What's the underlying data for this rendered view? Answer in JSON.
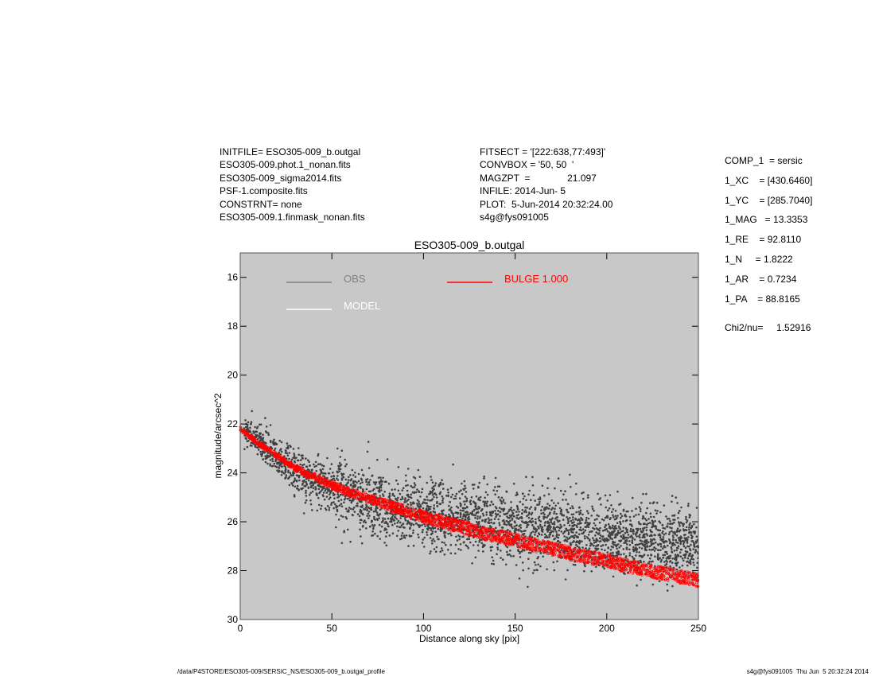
{
  "header": {
    "left": [
      "INITFILE= ESO305-009_b.outgal",
      "ESO305-009.phot.1_nonan.fits",
      "ESO305-009_sigma2014.fits",
      "PSF-1.composite.fits",
      "CONSTRNT= none",
      "ESO305-009.1.finmask_nonan.fits"
    ],
    "middle": [
      "FITSECT = '[222:638,77:493]'",
      "CONVBOX = '50, 50  '",
      "MAGZPT  =              21.097",
      "INFILE: 2014-Jun- 5",
      "PLOT:  5-Jun-2014 20:32:24.00",
      "s4g@fys091005"
    ]
  },
  "params": [
    "COMP_1  = sersic",
    "1_XC    = [430.6460]",
    "1_YC    = [285.7040]",
    "1_MAG   = 13.3353",
    "1_RE    = 92.8110",
    "1_N     = 1.8222",
    "1_AR    = 0.7234",
    "1_PA    = 88.8165"
  ],
  "chi": "Chi2/nu=     1.52916",
  "footer": {
    "left": "/data/P4STORE/ESO305-009/SERSIC_NS/ESO305-009_b.outgal_profile",
    "right": "s4g@fys091005  Thu Jun  5 20:32:24 2014"
  },
  "chart_data": {
    "type": "scatter",
    "title": "ESO305-009_b.outgal",
    "xlabel": "Distance along sky [pix]",
    "ylabel": "magnitude/arcsec^2",
    "xlim": [
      0,
      250
    ],
    "ylim": [
      30,
      15
    ],
    "y_inverted": true,
    "x_ticks": [
      0,
      50,
      100,
      150,
      200,
      250
    ],
    "y_ticks": [
      16,
      18,
      20,
      22,
      24,
      26,
      28,
      30
    ],
    "background": "#c8c8c8",
    "legend": [
      {
        "name": "OBS",
        "color": "#808080"
      },
      {
        "name": "MODEL",
        "color": "#ffffff"
      },
      {
        "name": "BULGE  1.000",
        "color": "#ff0000"
      }
    ],
    "series": [
      {
        "name": "OBS",
        "color": "#404040",
        "x": [
          2,
          5,
          8,
          10,
          15,
          20,
          25,
          30,
          40,
          50,
          60,
          70,
          80,
          90,
          100,
          110,
          120,
          130,
          140,
          150,
          160,
          170,
          180,
          190,
          200,
          210,
          220,
          230,
          240,
          250
        ],
        "y": [
          22.3,
          22.4,
          22.6,
          22.7,
          23.0,
          23.3,
          23.6,
          23.9,
          24.3,
          24.6,
          24.9,
          25.1,
          25.3,
          25.5,
          25.6,
          25.7,
          25.8,
          25.9,
          26.0,
          26.1,
          26.2,
          26.3,
          26.4,
          26.5,
          26.6,
          26.6,
          26.7,
          26.8,
          26.8,
          26.9
        ],
        "scatter_sd": 0.7
      },
      {
        "name": "BULGE  1.000",
        "color": "#ff0000",
        "x": [
          0,
          10,
          20,
          30,
          40,
          50,
          60,
          70,
          80,
          90,
          100,
          110,
          120,
          130,
          140,
          150,
          160,
          170,
          180,
          190,
          200,
          210,
          220,
          230,
          240,
          250
        ],
        "y": [
          22.2,
          22.8,
          23.3,
          23.8,
          24.15,
          24.5,
          24.8,
          25.05,
          25.3,
          25.55,
          25.8,
          26.0,
          26.2,
          26.4,
          26.6,
          26.75,
          26.95,
          27.1,
          27.3,
          27.45,
          27.6,
          27.8,
          27.95,
          28.1,
          28.25,
          28.4
        ],
        "band_width": 0.55
      }
    ]
  }
}
